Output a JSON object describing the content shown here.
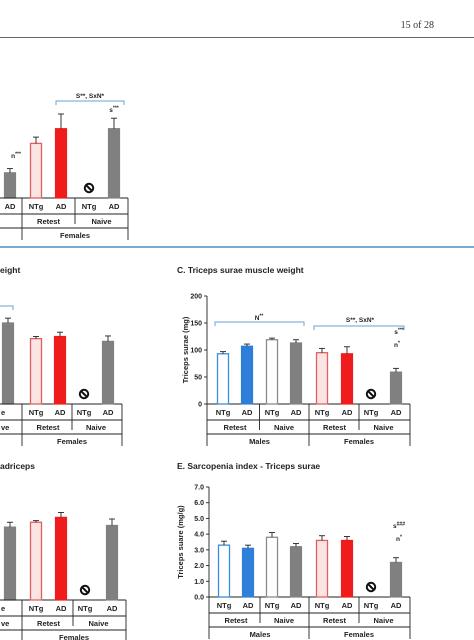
{
  "page": {
    "number_text": "15 of 28"
  },
  "colors": {
    "ntg_males": "#3a8fd8",
    "ad_males": "#2e7fd9",
    "ntg_females": "#e06060",
    "ad_females": "#ee1c1c",
    "naive": "#808080",
    "separator": "#2d74b5",
    "bracket": "#6aa0d0"
  },
  "chart_data": [
    {
      "panel": "top-right (partial)",
      "type": "bar",
      "categories": [
        "NTg",
        "AD",
        "NTg",
        "AD"
      ],
      "x_groups": [
        "Retest",
        "Naive"
      ],
      "sex_label": "Females",
      "values": [
        26,
        33,
        null,
        33
      ],
      "errors": [
        3,
        7,
        0,
        5
      ],
      "partial_bar": {
        "label": "AD",
        "value": 12,
        "error": 2,
        "annotation": "n***"
      },
      "annotations": {
        "bracket": "S**, SxN*",
        "naive_ad": "s***"
      }
    },
    {
      "panel": "B (partial)",
      "type": "bar",
      "title": "eight",
      "categories": [
        "NTg",
        "AD",
        "NTg",
        "AD"
      ],
      "x_groups": [
        "Retest",
        "Naive"
      ],
      "sex_label": "Females",
      "ylim": [
        0,
        200
      ],
      "values": [
        121,
        125,
        null,
        116
      ],
      "errors": [
        4,
        8,
        0,
        10
      ],
      "partial_bar": {
        "value": 150,
        "error": 9
      },
      "edge_labels": [
        "e",
        "ve"
      ]
    },
    {
      "panel": "C",
      "type": "bar",
      "title": "C. Triceps surae muscle weight",
      "ylabel": "Triceps surae (mg)",
      "ylim": [
        0,
        200
      ],
      "yticks": [
        "0",
        "50",
        "100",
        "150",
        "200"
      ],
      "categories": [
        "NTg",
        "AD",
        "NTg",
        "AD",
        "NTg",
        "AD",
        "NTg",
        "AD"
      ],
      "x_groups": [
        "Retest",
        "Naive",
        "Retest",
        "Naive"
      ],
      "sex_groups": [
        "Males",
        "Females"
      ],
      "values": [
        93,
        107,
        119,
        113,
        95,
        93,
        null,
        59
      ],
      "errors": [
        4,
        4,
        3,
        6,
        8,
        13,
        0,
        7
      ],
      "annotations": {
        "males_bracket": "N**",
        "females_bracket": "S**, SxN*",
        "naive_ad_1": "s***",
        "naive_ad_2": "n*"
      }
    },
    {
      "panel": "D (partial)",
      "type": "bar",
      "title": "adriceps",
      "categories": [
        "NTg",
        "AD",
        "NTg",
        "AD"
      ],
      "x_groups": [
        "Retest",
        "Naive"
      ],
      "sex_label": "Females",
      "values": [
        4.8,
        5.1,
        null,
        4.6
      ],
      "errors": [
        0.1,
        0.3,
        0,
        0.4
      ],
      "partial_bar": {
        "value": 4.5,
        "error": 0.3
      },
      "edge_labels": [
        "e",
        "ve"
      ]
    },
    {
      "panel": "E",
      "type": "bar",
      "title": "E. Sarcopenia index - Triceps surae",
      "ylabel": "Triceps suare (mg/g)",
      "ylim": [
        0,
        7
      ],
      "yticks": [
        "0.0",
        "1.0",
        "2.0",
        "3.0",
        "4.0",
        "5.0",
        "6.0",
        "7.0"
      ],
      "categories": [
        "NTg",
        "AD",
        "NTg",
        "AD",
        "NTg",
        "AD",
        "NTg",
        "AD"
      ],
      "x_groups": [
        "Retest",
        "Naive",
        "Retest",
        "Naive"
      ],
      "sex_groups": [
        "Males",
        "Females"
      ],
      "values": [
        3.3,
        3.1,
        3.8,
        3.2,
        3.6,
        3.6,
        null,
        2.2
      ],
      "errors": [
        0.25,
        0.2,
        0.3,
        0.2,
        0.3,
        0.25,
        0,
        0.3
      ],
      "annotations": {
        "naive_ad_1": "s###",
        "naive_ad_2": "n*"
      }
    }
  ]
}
